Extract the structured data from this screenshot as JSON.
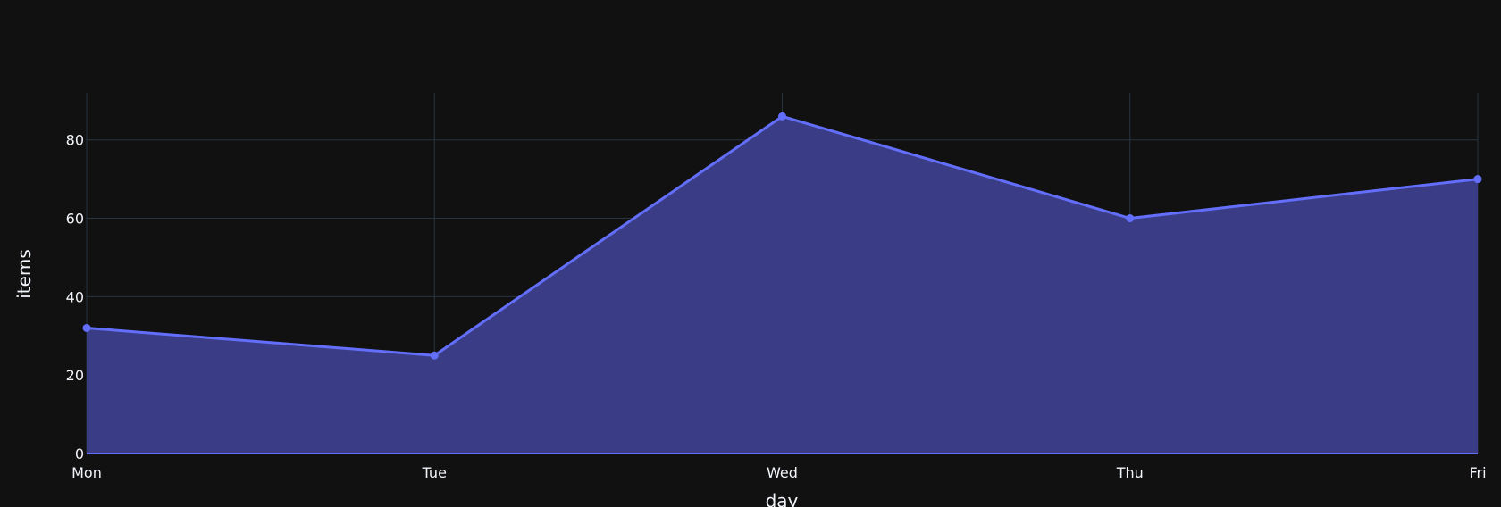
{
  "chart_data": {
    "type": "area",
    "categories": [
      "Mon",
      "Tue",
      "Wed",
      "Thu",
      "Fri"
    ],
    "series": [
      {
        "values": [
          32,
          25,
          86,
          60,
          70
        ]
      }
    ],
    "xlabel": "day",
    "ylabel": "items",
    "ylim": [
      0,
      92
    ],
    "yticks": [
      0,
      20,
      40,
      60,
      80
    ],
    "grid": true,
    "colors": {
      "background": "#111111",
      "grid": "#283442",
      "line": "#636efa",
      "fill": "#3a3d86",
      "text": "#f2f5fa"
    }
  }
}
